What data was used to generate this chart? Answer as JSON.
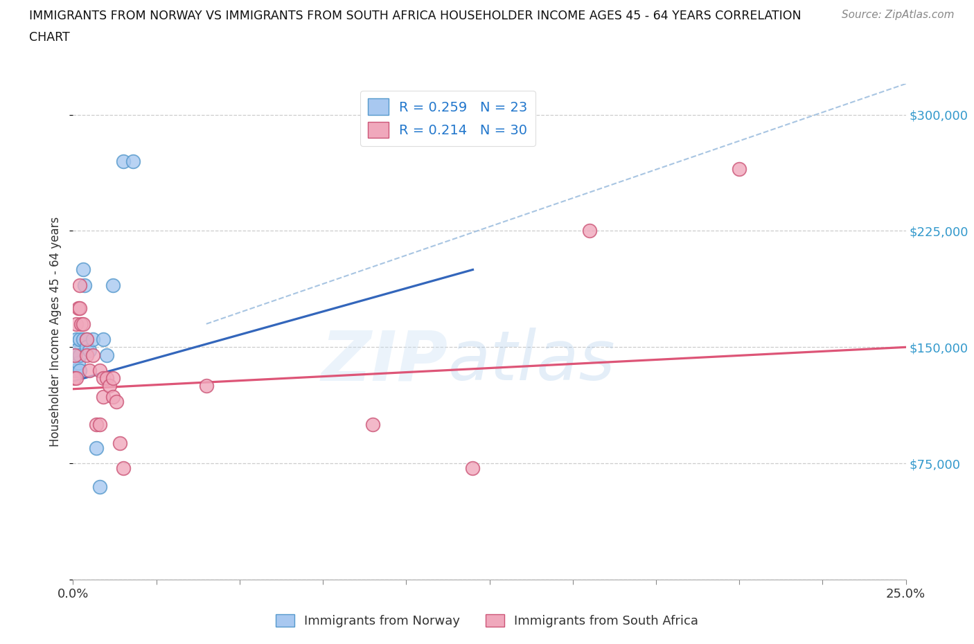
{
  "title_line1": "IMMIGRANTS FROM NORWAY VS IMMIGRANTS FROM SOUTH AFRICA HOUSEHOLDER INCOME AGES 45 - 64 YEARS CORRELATION",
  "title_line2": "CHART",
  "source": "Source: ZipAtlas.com",
  "ylabel": "Householder Income Ages 45 - 64 years",
  "xlim": [
    0.0,
    0.25
  ],
  "ylim": [
    0,
    320000
  ],
  "yticks": [
    0,
    75000,
    150000,
    225000,
    300000
  ],
  "xticks": [
    0.0,
    0.025,
    0.05,
    0.075,
    0.1,
    0.125,
    0.15,
    0.175,
    0.2,
    0.225,
    0.25
  ],
  "norway_color": "#a8c8f0",
  "norway_edge": "#5599cc",
  "sa_color": "#f0a8bc",
  "sa_edge": "#cc5577",
  "norway_R": 0.259,
  "norway_N": 23,
  "sa_R": 0.214,
  "sa_N": 30,
  "norway_line_color": "#3366bb",
  "sa_line_color": "#dd5577",
  "dashed_color": "#99bbdd",
  "watermark_zip": "ZIP",
  "watermark_atlas": "atlas",
  "norway_line_x": [
    0.0,
    0.12
  ],
  "norway_line_y": [
    128000,
    200000
  ],
  "sa_line_x": [
    0.0,
    0.25
  ],
  "sa_line_y": [
    123000,
    150000
  ],
  "dashed_line_x": [
    0.04,
    0.25
  ],
  "dashed_line_y": [
    165000,
    320000
  ],
  "norway_x": [
    0.0005,
    0.0005,
    0.001,
    0.001,
    0.001,
    0.0015,
    0.002,
    0.002,
    0.002,
    0.003,
    0.003,
    0.0035,
    0.004,
    0.004,
    0.005,
    0.006,
    0.007,
    0.008,
    0.009,
    0.01,
    0.012,
    0.015,
    0.018
  ],
  "norway_y": [
    145000,
    135000,
    155000,
    148000,
    135000,
    140000,
    155000,
    145000,
    135000,
    200000,
    155000,
    190000,
    155000,
    150000,
    148000,
    155000,
    85000,
    60000,
    155000,
    145000,
    190000,
    270000,
    270000
  ],
  "sa_x": [
    0.0003,
    0.0005,
    0.001,
    0.001,
    0.0015,
    0.002,
    0.002,
    0.0025,
    0.003,
    0.004,
    0.004,
    0.005,
    0.006,
    0.007,
    0.008,
    0.008,
    0.009,
    0.009,
    0.01,
    0.011,
    0.012,
    0.012,
    0.013,
    0.014,
    0.015,
    0.04,
    0.09,
    0.12,
    0.155,
    0.2
  ],
  "sa_y": [
    130000,
    145000,
    130000,
    165000,
    175000,
    190000,
    175000,
    165000,
    165000,
    155000,
    145000,
    135000,
    145000,
    100000,
    100000,
    135000,
    118000,
    130000,
    130000,
    125000,
    130000,
    118000,
    115000,
    88000,
    72000,
    125000,
    100000,
    72000,
    225000,
    265000
  ]
}
